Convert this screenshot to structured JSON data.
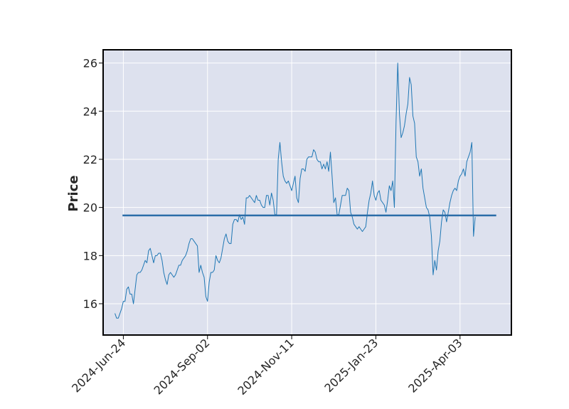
{
  "chart_data": {
    "type": "line",
    "title": "",
    "xlabel": "",
    "ylabel": "Price",
    "ylim": [
      14.7,
      26.55
    ],
    "y_ticks": [
      16,
      18,
      20,
      22,
      24,
      26
    ],
    "x_ticks": [
      "2024-Jun-24",
      "2024-Sep-02",
      "2024-Nov-11",
      "2025-Jan-23",
      "2025-Apr-03"
    ],
    "x_range_index": [
      -7,
      235.5
    ],
    "x_tick_index": [
      5,
      55,
      105,
      155,
      205
    ],
    "grid": true,
    "series": [
      {
        "name": "",
        "style": "line",
        "color": "#1f77b4",
        "values": [
          15.6,
          15.4,
          15.4,
          15.6,
          15.8,
          16.1,
          16.1,
          16.6,
          16.7,
          16.4,
          16.4,
          16.0,
          16.6,
          17.2,
          17.3,
          17.3,
          17.4,
          17.6,
          17.8,
          17.7,
          18.2,
          18.3,
          18.0,
          17.7,
          18.0,
          18.0,
          18.1,
          18.1,
          17.8,
          17.3,
          17.0,
          16.8,
          17.2,
          17.3,
          17.2,
          17.1,
          17.2,
          17.4,
          17.6,
          17.6,
          17.8,
          17.9,
          18.0,
          18.2,
          18.5,
          18.7,
          18.7,
          18.6,
          18.5,
          18.4,
          17.3,
          17.6,
          17.3,
          17.1,
          16.3,
          16.1,
          16.9,
          17.3,
          17.3,
          17.4,
          18.0,
          17.8,
          17.7,
          17.9,
          18.3,
          18.7,
          18.9,
          18.6,
          18.5,
          18.5,
          19.3,
          19.5,
          19.5,
          19.4,
          19.7,
          19.5,
          19.6,
          19.3,
          20.4,
          20.4,
          20.5,
          20.4,
          20.3,
          20.2,
          20.5,
          20.3,
          20.3,
          20.1,
          20.0,
          20.0,
          20.5,
          20.5,
          20.1,
          20.6,
          20.3,
          19.7,
          19.7,
          22.0,
          22.7,
          21.9,
          21.3,
          21.1,
          21.0,
          21.1,
          20.9,
          20.7,
          21.0,
          21.3,
          20.4,
          20.2,
          21.2,
          21.6,
          21.6,
          21.5,
          22.0,
          22.1,
          22.1,
          22.1,
          22.4,
          22.3,
          22.0,
          21.9,
          21.9,
          21.6,
          21.8,
          21.6,
          21.9,
          21.5,
          22.3,
          21.3,
          20.2,
          20.4,
          19.7,
          19.7,
          20.1,
          20.5,
          20.5,
          20.5,
          20.8,
          20.7,
          19.8,
          19.6,
          19.3,
          19.2,
          19.1,
          19.2,
          19.1,
          19.0,
          19.1,
          19.2,
          19.8,
          20.3,
          20.6,
          21.1,
          20.5,
          20.3,
          20.6,
          20.7,
          20.3,
          20.2,
          20.1,
          19.8,
          20.3,
          20.9,
          20.7,
          21.1,
          20.0,
          23.6,
          26.0,
          23.9,
          22.9,
          23.1,
          23.4,
          23.9,
          24.3,
          25.4,
          25.1,
          23.8,
          23.5,
          22.1,
          21.9,
          21.3,
          21.6,
          20.8,
          20.4,
          20.0,
          19.9,
          19.6,
          18.8,
          17.2,
          17.8,
          17.4,
          18.2,
          18.6,
          19.4,
          19.9,
          19.8,
          19.4,
          19.8,
          20.2,
          20.5,
          20.7,
          20.8,
          20.7,
          21.1,
          21.3,
          21.4,
          21.6,
          21.3,
          21.9,
          22.1,
          22.3,
          22.7,
          18.8,
          19.6
        ]
      },
      {
        "name": "",
        "style": "horizontal-line",
        "color": "#2b6da8",
        "value": 19.67,
        "x_index_range": [
          4.5,
          226.5
        ]
      }
    ]
  },
  "colors": {
    "plot_background": "#dde1ee",
    "grid": "#ffffff",
    "frame": "#000000",
    "tick_label": "#262626"
  }
}
